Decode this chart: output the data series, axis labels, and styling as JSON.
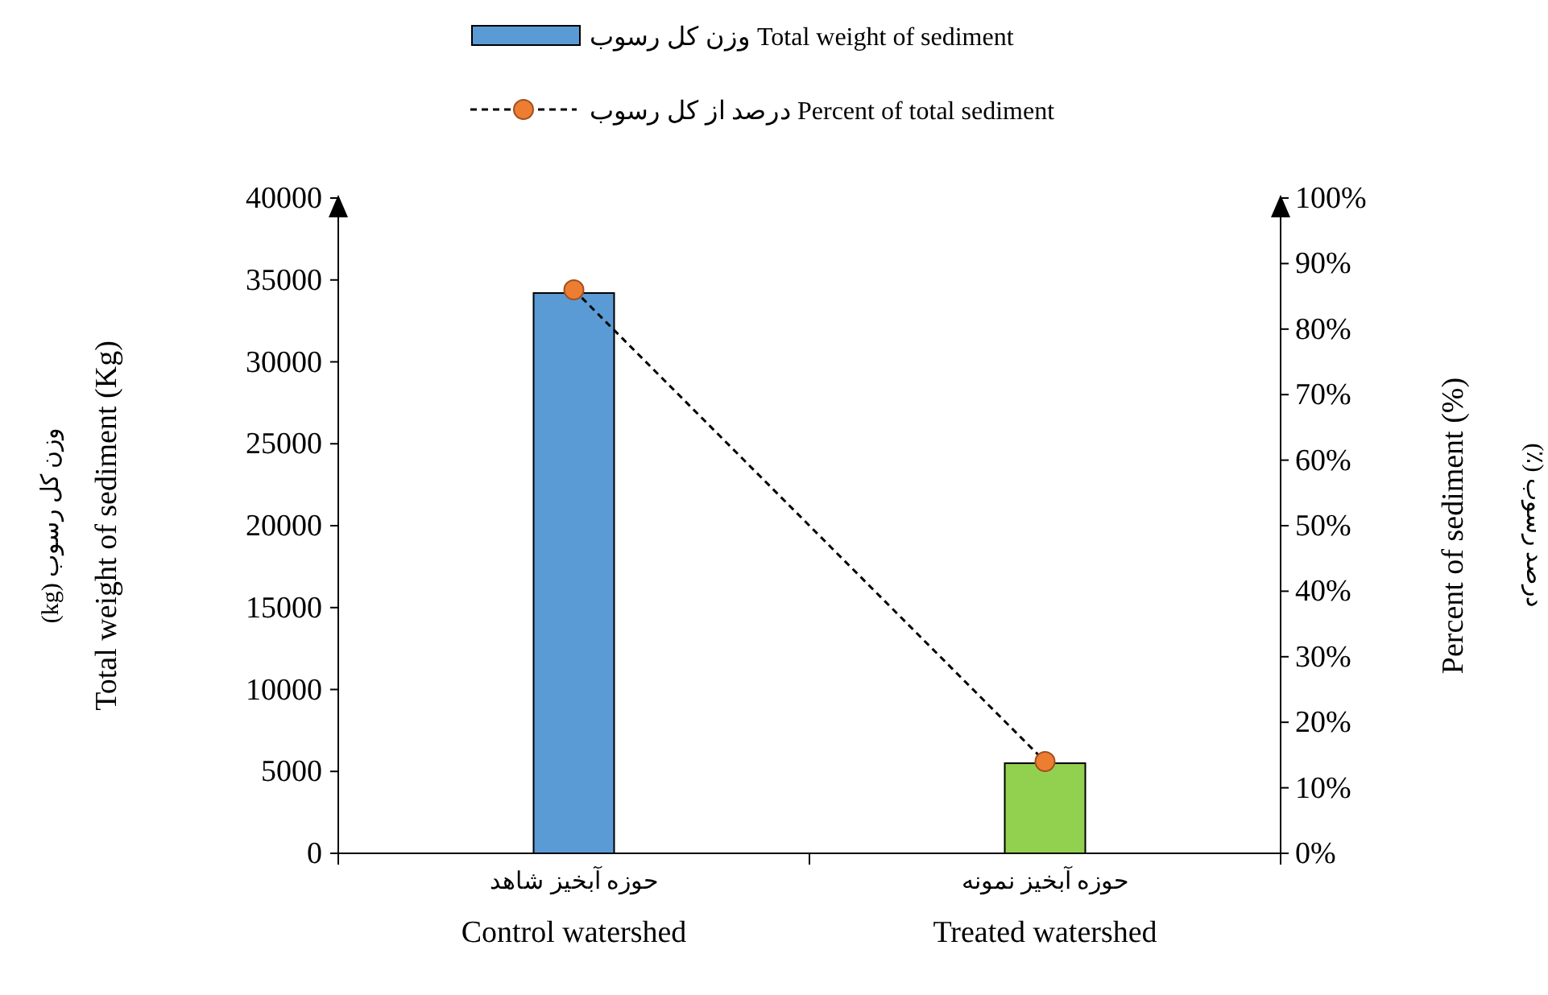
{
  "chart_data": {
    "type": "bar",
    "categories": [
      "Control watershed",
      "Treated watershed"
    ],
    "series": [
      {
        "name": "وزن کل رسوب  Total weight of sediment",
        "colors": [
          "#5b9bd5",
          "#92d050"
        ],
        "values": [
          34200,
          5500
        ]
      },
      {
        "type": "line",
        "name": "درصد از کل رسوب  Percent of total sediment",
        "axis": "y2",
        "color": "#ed7d31",
        "marker": "circle",
        "line_style": "dashed",
        "values": [
          86,
          14
        ]
      }
    ],
    "ylabel": "Total weight of sediment (Kg)",
    "y2label": "Percent of sediment (%)",
    "ylim": [
      0,
      40000
    ],
    "yticks": [
      0,
      5000,
      10000,
      15000,
      20000,
      25000,
      30000,
      35000,
      40000
    ],
    "y2lim": [
      0,
      100
    ],
    "y2ticks": [
      {
        "value": 0,
        "label": "0%"
      },
      {
        "value": 10,
        "label": "10%"
      },
      {
        "value": 20,
        "label": "20%"
      },
      {
        "value": 30,
        "label": "30%"
      },
      {
        "value": 40,
        "label": "40%"
      },
      {
        "value": 50,
        "label": "50%"
      },
      {
        "value": 60,
        "label": "60%"
      },
      {
        "value": 70,
        "label": "70%"
      },
      {
        "value": 80,
        "label": "80%"
      },
      {
        "value": 90,
        "label": "90%"
      },
      {
        "value": 100,
        "label": "100%"
      }
    ],
    "legend": "top",
    "annotations": [
      "وزن کل رسوب (kg)",
      "درصد رسوب (٪)",
      "حوزه آبخیز شاهد",
      "حوزه آبخیز نمونه"
    ]
  }
}
